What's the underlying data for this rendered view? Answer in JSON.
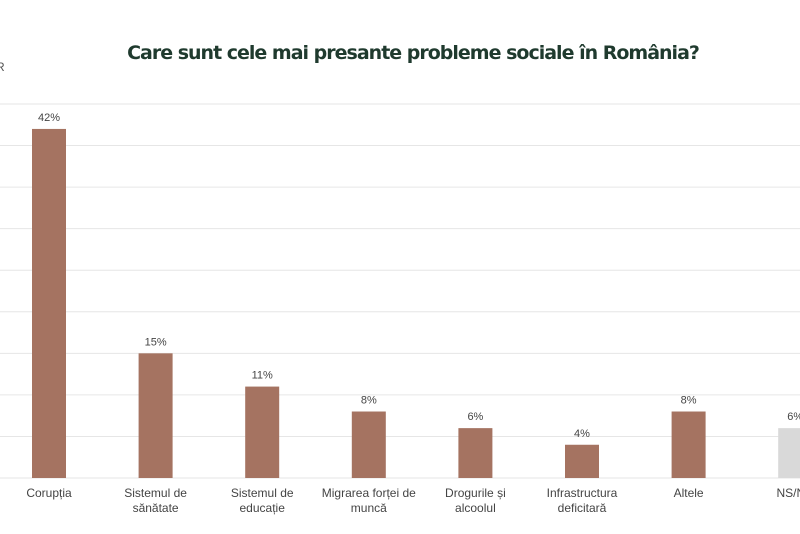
{
  "chart_data": {
    "type": "bar",
    "title": "Care sunt cele mai presante probleme sociale în România?",
    "axis_fragment": "R",
    "categories": [
      [
        "Corupția"
      ],
      [
        "Sistemul de",
        "sănătate"
      ],
      [
        "Sistemul de",
        "educație"
      ],
      [
        "Migrarea forței de",
        "muncă"
      ],
      [
        "Drogurile și",
        "alcoolul"
      ],
      [
        "Infrastructura",
        "deficitară"
      ],
      [
        "Altele"
      ],
      [
        "NS/NR"
      ]
    ],
    "values": [
      42,
      15,
      11,
      8,
      6,
      4,
      8,
      6
    ],
    "data_labels": [
      "42%",
      "15%",
      "11%",
      "8%",
      "6%",
      "4%",
      "8%",
      "6%"
    ],
    "ylim": [
      0,
      45
    ],
    "grid": true,
    "grid_step": 5,
    "colors": [
      "#a57361",
      "#a57361",
      "#a57361",
      "#a57361",
      "#a57361",
      "#a57361",
      "#a57361",
      "#d9d9d9"
    ]
  }
}
